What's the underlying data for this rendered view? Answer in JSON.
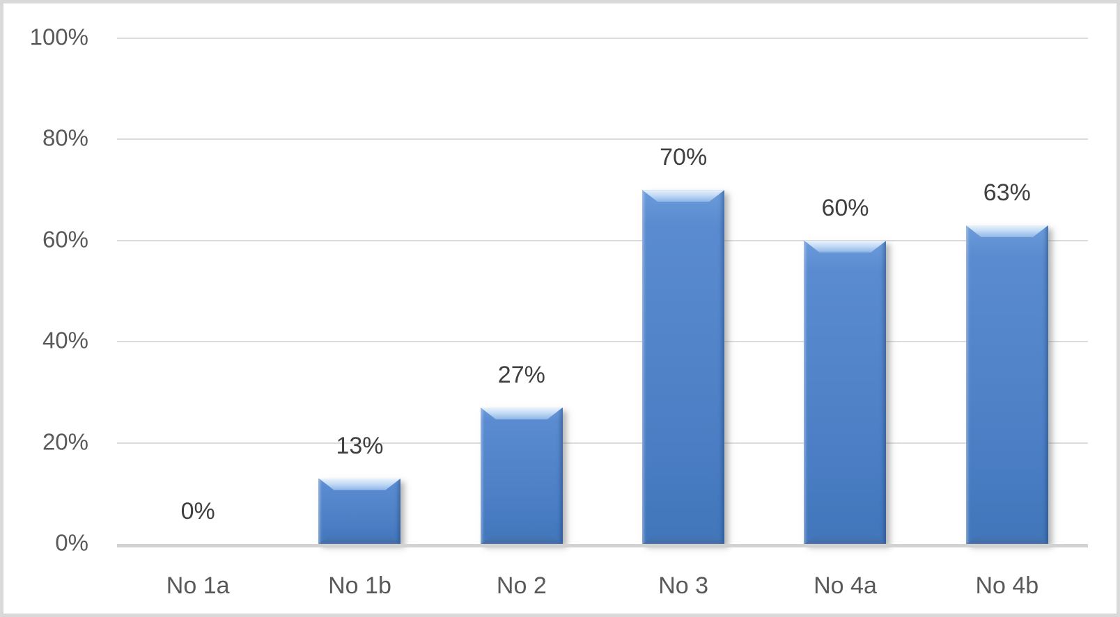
{
  "chart_data": {
    "type": "bar",
    "categories": [
      "No 1a",
      "No 1b",
      "No 2",
      "No 3",
      "No 4a",
      "No 4b"
    ],
    "values": [
      0,
      13,
      27,
      70,
      60,
      63
    ],
    "data_labels": [
      "0%",
      "13%",
      "27%",
      "70%",
      "60%",
      "63%"
    ],
    "yticks": [
      {
        "value": 0,
        "label": "0%"
      },
      {
        "value": 20,
        "label": "20%"
      },
      {
        "value": 40,
        "label": "40%"
      },
      {
        "value": 60,
        "label": "60%"
      },
      {
        "value": 80,
        "label": "80%"
      },
      {
        "value": 100,
        "label": "100%"
      }
    ],
    "ylim": [
      0,
      100
    ],
    "grid": true,
    "legend": false,
    "title": "",
    "xlabel": "",
    "ylabel": ""
  },
  "colors": {
    "bar_fill": "#5486cb",
    "bar_highlight": "#c3dbf5",
    "gridline": "#dcdcdc",
    "axis_line": "#d2d2d2",
    "frame_border": "#d9d9d9",
    "tick_text": "#595959",
    "data_label_text": "#3f3f3f",
    "background": "#ffffff"
  }
}
